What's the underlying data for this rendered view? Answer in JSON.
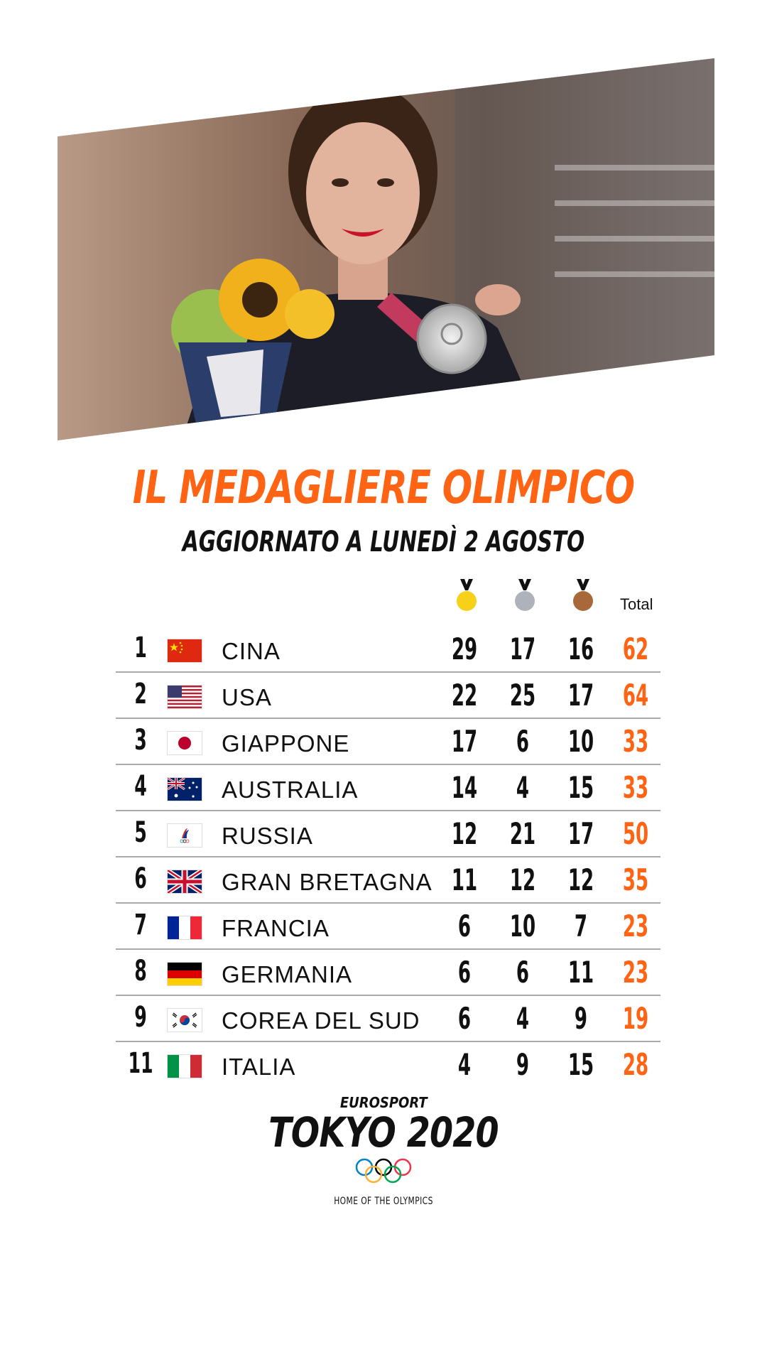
{
  "header": {
    "title": "IL MEDAGLIERE OLIMPICO",
    "subtitle": "AGGIORNATO A LUNEDÌ 2 AGOSTO"
  },
  "columns": {
    "total_label": "Total",
    "medal_colors": {
      "gold": "#f7d019",
      "silver": "#aeb3bb",
      "bronze": "#a8683a"
    }
  },
  "accent_color": "#ff6414",
  "standings": [
    {
      "rank": "1",
      "country": "CINA",
      "flag": "china",
      "gold": "29",
      "silver": "17",
      "bronze": "16",
      "total": "62"
    },
    {
      "rank": "2",
      "country": "USA",
      "flag": "usa",
      "gold": "22",
      "silver": "25",
      "bronze": "17",
      "total": "64"
    },
    {
      "rank": "3",
      "country": "GIAPPONE",
      "flag": "japan",
      "gold": "17",
      "silver": "6",
      "bronze": "10",
      "total": "33"
    },
    {
      "rank": "4",
      "country": "AUSTRALIA",
      "flag": "australia",
      "gold": "14",
      "silver": "4",
      "bronze": "15",
      "total": "33"
    },
    {
      "rank": "5",
      "country": "RUSSIA",
      "flag": "roc",
      "gold": "12",
      "silver": "21",
      "bronze": "17",
      "total": "50"
    },
    {
      "rank": "6",
      "country": "GRAN BRETAGNA",
      "flag": "great-britain",
      "gold": "11",
      "silver": "12",
      "bronze": "12",
      "total": "35"
    },
    {
      "rank": "7",
      "country": "FRANCIA",
      "flag": "france",
      "gold": "6",
      "silver": "10",
      "bronze": "7",
      "total": "23"
    },
    {
      "rank": "8",
      "country": "GERMANIA",
      "flag": "germany",
      "gold": "6",
      "silver": "6",
      "bronze": "11",
      "total": "23"
    },
    {
      "rank": "9",
      "country": "COREA DEL SUD",
      "flag": "south-korea",
      "gold": "6",
      "silver": "4",
      "bronze": "9",
      "total": "19"
    },
    {
      "rank": "11",
      "country": "ITALIA",
      "flag": "italy",
      "gold": "4",
      "silver": "9",
      "bronze": "15",
      "total": "28"
    }
  ],
  "footer": {
    "brand": "EUROSPORT",
    "event": "TOKYO 2020",
    "tagline": "HOME OF THE OLYMPICS"
  }
}
